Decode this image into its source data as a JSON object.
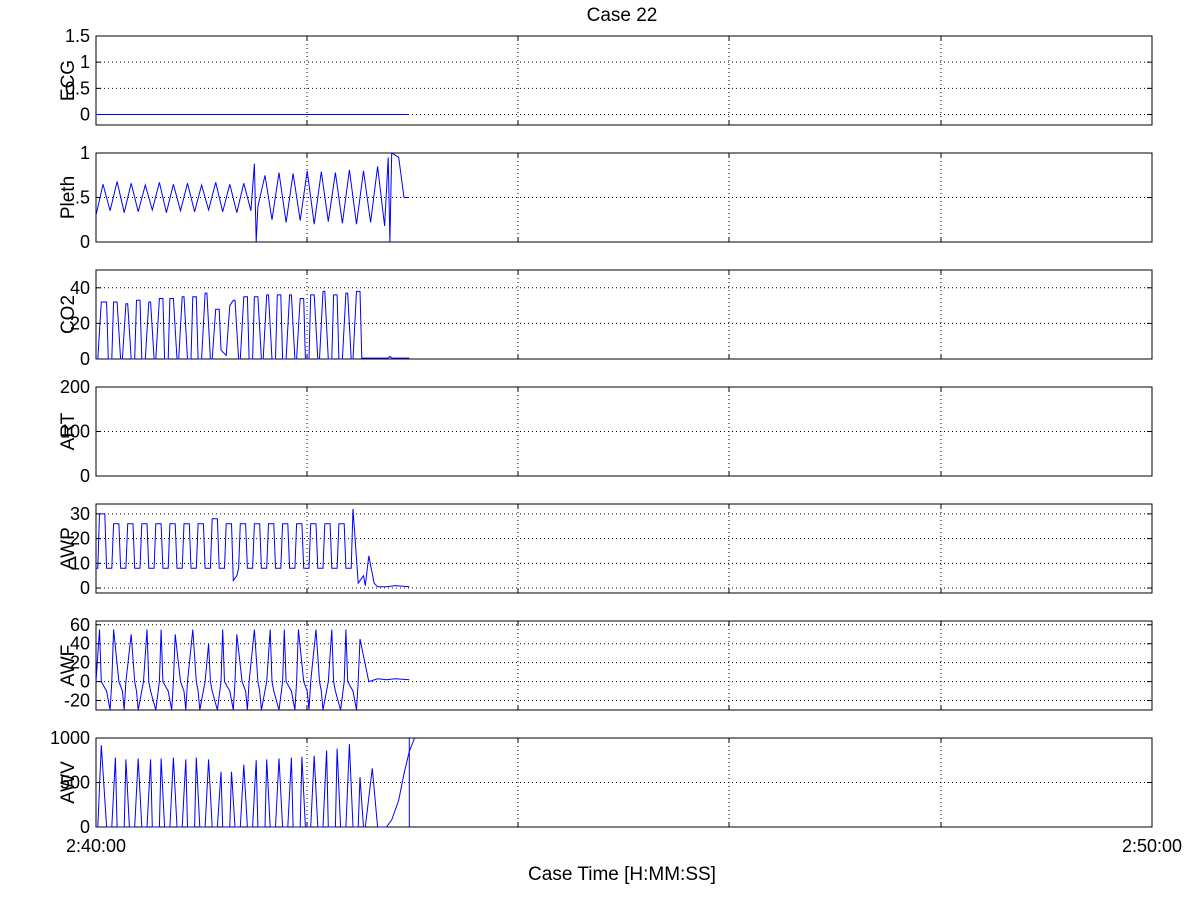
{
  "chart_data": {
    "type": "line",
    "title": "Case 22",
    "xlabel": "Case Time [H:MM:SS]",
    "x_ticks": [
      "2:40:00",
      "2:50:00"
    ],
    "x_range_seconds": [
      0,
      600
    ],
    "grid": true,
    "series_color": "#0000ff",
    "panels": [
      {
        "name": "ECG",
        "ylabel": "ECG",
        "ylim": [
          -0.2,
          1.5
        ],
        "yticks": [
          0,
          0.5,
          1,
          1.5
        ],
        "ytick_labels": [
          "0",
          "0.5",
          "1",
          "1.5"
        ],
        "series": [
          {
            "x": [
              0,
              178
            ],
            "y": [
              0,
              0
            ]
          }
        ]
      },
      {
        "name": "Pleth",
        "ylabel": "Pleth",
        "ylim": [
          0,
          1
        ],
        "yticks": [
          0,
          0.5,
          1
        ],
        "ytick_labels": [
          "0",
          ".5",
          "1"
        ],
        "series": [
          {
            "x": [
              0,
              4,
              8,
              12,
              16,
              20,
              24,
              28,
              32,
              36,
              40,
              44,
              48,
              52,
              56,
              60,
              64,
              68,
              72,
              76,
              80,
              84,
              88,
              90,
              91,
              92,
              96,
              100,
              104,
              108,
              112,
              116,
              120,
              124,
              128,
              132,
              136,
              140,
              144,
              148,
              152,
              156,
              160,
              164,
              166,
              167,
              168,
              172,
              175,
              178
            ],
            "y": [
              0.3,
              0.65,
              0.35,
              0.68,
              0.33,
              0.66,
              0.34,
              0.64,
              0.36,
              0.67,
              0.33,
              0.65,
              0.35,
              0.66,
              0.34,
              0.64,
              0.36,
              0.67,
              0.34,
              0.65,
              0.33,
              0.66,
              0.35,
              0.88,
              0.0,
              0.4,
              0.75,
              0.25,
              0.78,
              0.22,
              0.77,
              0.24,
              0.8,
              0.2,
              0.79,
              0.23,
              0.78,
              0.21,
              0.81,
              0.2,
              0.8,
              0.22,
              0.85,
              0.18,
              0.95,
              0.0,
              1.0,
              0.95,
              0.5,
              0.5
            ]
          }
        ]
      },
      {
        "name": "CO2",
        "ylabel": "CO2",
        "ylim": [
          0,
          50
        ],
        "yticks": [
          0,
          20,
          40
        ],
        "ytick_labels": [
          "0",
          "20",
          "40"
        ],
        "series": [
          {
            "x": [
              0,
              1,
              3,
              6,
              7,
              9,
              10,
              12,
              14,
              15,
              17,
              18,
              20,
              22,
              23,
              25,
              26,
              28,
              30,
              31,
              33,
              34,
              36,
              38,
              39,
              41,
              42,
              44,
              46,
              47,
              49,
              50,
              52,
              54,
              55,
              57,
              58,
              60,
              62,
              63,
              65,
              66,
              68,
              70,
              71,
              73,
              74,
              76,
              78,
              79,
              81,
              82,
              84,
              86,
              87,
              89,
              90,
              92,
              94,
              95,
              97,
              98,
              100,
              102,
              103,
              105,
              106,
              108,
              110,
              111,
              113,
              114,
              116,
              118,
              119,
              121,
              122,
              124,
              126,
              127,
              129,
              130,
              132,
              134,
              135,
              137,
              138,
              140,
              142,
              143,
              145,
              146,
              148,
              150,
              151,
              153,
              154,
              156,
              158,
              160,
              166,
              167,
              168,
              169,
              178
            ],
            "y": [
              0,
              0,
              32,
              32,
              0,
              0,
              32,
              32,
              0,
              0,
              31,
              31,
              0,
              0,
              33,
              33,
              0,
              0,
              32,
              32,
              0,
              0,
              34,
              34,
              0,
              0,
              34,
              34,
              0,
              0,
              35,
              35,
              0,
              0,
              35,
              35,
              0,
              0,
              37,
              37,
              0,
              0,
              28,
              28,
              5,
              3,
              2,
              30,
              33,
              33,
              0,
              0,
              35,
              35,
              0,
              0,
              35,
              35,
              0,
              0,
              36,
              36,
              0,
              0,
              36,
              36,
              0,
              0,
              36,
              36,
              0,
              0,
              34,
              34,
              0,
              0,
              36,
              36,
              0,
              0,
              38,
              38,
              0,
              0,
              36,
              36,
              0,
              0,
              37,
              37,
              0,
              0,
              38,
              38,
              0.5,
              0.5,
              0.5,
              0.5,
              0.5,
              0.5,
              0.5,
              1.5,
              0.5,
              0.5,
              0.5
            ]
          }
        ]
      },
      {
        "name": "ART",
        "ylabel": "ART",
        "ylim": [
          0,
          200
        ],
        "yticks": [
          0,
          100,
          200
        ],
        "ytick_labels": [
          "0",
          "100",
          "200"
        ],
        "series": []
      },
      {
        "name": "AWP",
        "ylabel": "AWP",
        "ylim": [
          -2,
          34
        ],
        "yticks": [
          0,
          10,
          20,
          30
        ],
        "ytick_labels": [
          "0",
          "10",
          "20",
          "30"
        ],
        "series": [
          {
            "x": [
              0,
              1,
              2,
              5,
              6,
              8,
              9,
              10,
              13,
              14,
              16,
              17,
              18,
              21,
              22,
              24,
              25,
              26,
              29,
              30,
              32,
              33,
              34,
              37,
              38,
              40,
              41,
              42,
              45,
              46,
              48,
              49,
              50,
              53,
              54,
              56,
              57,
              58,
              61,
              62,
              64,
              65,
              66,
              69,
              70,
              72,
              73,
              74,
              77,
              78,
              80,
              81,
              82,
              85,
              86,
              88,
              89,
              90,
              93,
              94,
              96,
              97,
              98,
              101,
              102,
              104,
              105,
              106,
              109,
              110,
              112,
              113,
              114,
              117,
              118,
              120,
              121,
              122,
              125,
              126,
              128,
              129,
              130,
              133,
              134,
              136,
              137,
              138,
              141,
              142,
              144,
              145,
              146,
              149,
              150,
              152,
              153,
              155,
              158,
              160,
              165,
              170,
              178
            ],
            "y": [
              8,
              8,
              30,
              30,
              8,
              8,
              8,
              26,
              26,
              8,
              8,
              8,
              26,
              26,
              8,
              8,
              8,
              26,
              26,
              8,
              8,
              8,
              26,
              26,
              8,
              8,
              8,
              26,
              26,
              8,
              8,
              8,
              26,
              26,
              8,
              8,
              8,
              26,
              26,
              8,
              8,
              8,
              28,
              28,
              8,
              8,
              8,
              26,
              26,
              3,
              5,
              8,
              26,
              26,
              8,
              8,
              8,
              26,
              26,
              8,
              8,
              8,
              26,
              26,
              8,
              8,
              8,
              26,
              26,
              8,
              8,
              8,
              26,
              26,
              8,
              8,
              8,
              26,
              26,
              8,
              8,
              8,
              26,
              26,
              8,
              8,
              8,
              26,
              26,
              8,
              8,
              8,
              32,
              2,
              3,
              5,
              1,
              13,
              2,
              0.5,
              0.5,
              1,
              0.5
            ]
          }
        ]
      },
      {
        "name": "AWF",
        "ylabel": "AWF",
        "ylim": [
          -30,
          64
        ],
        "yticks": [
          -20,
          0,
          20,
          40,
          60
        ],
        "ytick_labels": [
          "-20",
          "0",
          "20",
          "40",
          "60"
        ],
        "series": [
          {
            "x": [
              0,
              2,
              3,
              6,
              8,
              9,
              10,
              13,
              15,
              16,
              17,
              20,
              22,
              23,
              24,
              27,
              29,
              30,
              31,
              34,
              36,
              37,
              38,
              41,
              43,
              44,
              45,
              48,
              50,
              51,
              52,
              55,
              57,
              58,
              59,
              62,
              64,
              65,
              66,
              69,
              71,
              72,
              73,
              76,
              78,
              79,
              80,
              83,
              85,
              86,
              87,
              90,
              92,
              93,
              94,
              97,
              99,
              100,
              101,
              104,
              106,
              107,
              108,
              111,
              113,
              114,
              115,
              118,
              120,
              121,
              122,
              125,
              127,
              128,
              129,
              132,
              134,
              135,
              136,
              139,
              141,
              142,
              143,
              146,
              148,
              149,
              150,
              155,
              160,
              165,
              170,
              178
            ],
            "y": [
              0,
              55,
              0,
              -10,
              -30,
              0,
              55,
              0,
              -10,
              -30,
              0,
              50,
              0,
              -10,
              -30,
              0,
              55,
              0,
              -10,
              -30,
              0,
              55,
              0,
              -10,
              -30,
              0,
              50,
              0,
              -10,
              -30,
              0,
              55,
              0,
              -10,
              -30,
              0,
              40,
              0,
              -10,
              -30,
              0,
              55,
              0,
              -10,
              -30,
              0,
              50,
              0,
              -10,
              -30,
              0,
              55,
              0,
              -10,
              -30,
              0,
              55,
              0,
              -10,
              -30,
              0,
              55,
              0,
              -10,
              -30,
              0,
              55,
              0,
              -10,
              -30,
              0,
              55,
              0,
              -10,
              -30,
              0,
              55,
              0,
              -10,
              -30,
              0,
              55,
              0,
              -10,
              -30,
              0,
              45,
              0,
              3,
              2,
              3,
              2
            ]
          }
        ]
      },
      {
        "name": "AWV",
        "ylabel": "AWV",
        "ylim": [
          0,
          1000
        ],
        "yticks": [
          0,
          500,
          1000
        ],
        "ytick_labels": [
          "0",
          "500",
          "1000"
        ],
        "series": [
          {
            "x": [
              0,
              1,
              3,
              6,
              7,
              9,
              11,
              12,
              14,
              16,
              17,
              19,
              21,
              22,
              24,
              26,
              27,
              29,
              31,
              32,
              34,
              36,
              37,
              39,
              41,
              42,
              44,
              46,
              47,
              49,
              51,
              52,
              54,
              56,
              57,
              59,
              61,
              62,
              64,
              66,
              67,
              69,
              71,
              72,
              74,
              76,
              77,
              79,
              81,
              82,
              84,
              86,
              87,
              89,
              91,
              92,
              94,
              96,
              97,
              99,
              101,
              102,
              104,
              106,
              107,
              109,
              111,
              112,
              114,
              116,
              117,
              119,
              121,
              122,
              124,
              126,
              127,
              129,
              131,
              132,
              134,
              136,
              137,
              139,
              141,
              142,
              144,
              146,
              147,
              149,
              150,
              152,
              153,
              157,
              160,
              162,
              165,
              168,
              172,
              175,
              178,
              181
            ],
            "y": [
              0,
              0,
              920,
              0,
              0,
              0,
              780,
              0,
              0,
              0,
              760,
              0,
              0,
              0,
              770,
              0,
              0,
              0,
              760,
              0,
              0,
              0,
              770,
              0,
              0,
              0,
              780,
              0,
              0,
              0,
              760,
              0,
              0,
              0,
              780,
              0,
              0,
              0,
              760,
              0,
              0,
              0,
              620,
              0,
              0,
              0,
              620,
              0,
              0,
              0,
              700,
              0,
              0,
              0,
              750,
              0,
              0,
              0,
              760,
              0,
              0,
              0,
              770,
              0,
              0,
              0,
              780,
              0,
              0,
              0,
              790,
              0,
              0,
              0,
              800,
              0,
              0,
              0,
              860,
              0,
              0,
              0,
              880,
              0,
              0,
              0,
              930,
              0,
              0,
              0,
              560,
              0,
              0,
              660,
              0,
              0,
              0,
              80,
              300,
              600,
              850,
              1000
            ]
          },
          {
            "x": [
              178,
              178
            ],
            "y": [
              0,
              1000
            ]
          }
        ]
      }
    ]
  }
}
